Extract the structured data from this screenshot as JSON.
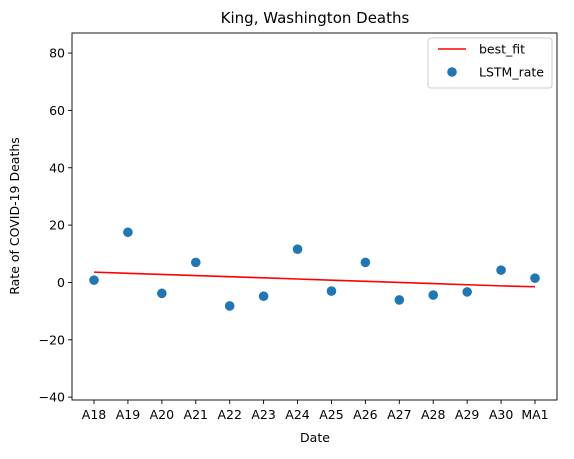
{
  "chart_data": {
    "type": "scatter",
    "title": "King, Washington Deaths",
    "xlabel": "Date",
    "ylabel": "Rate of COVID-19 Deaths",
    "categories": [
      "A18",
      "A19",
      "A20",
      "A21",
      "A22",
      "A23",
      "A24",
      "A25",
      "A26",
      "A27",
      "A28",
      "A29",
      "A30",
      "MA1"
    ],
    "ylim": [
      -41,
      87
    ],
    "yticks": [
      -40,
      -20,
      0,
      20,
      40,
      60,
      80
    ],
    "grid": false,
    "legend_position": "top-right",
    "series": [
      {
        "name": "best_fit",
        "kind": "line",
        "color": "#ff0000",
        "values": [
          3.6,
          3.2,
          2.8,
          2.4,
          2.0,
          1.6,
          1.2,
          0.8,
          0.4,
          0.0,
          -0.4,
          -0.8,
          -1.2,
          -1.5
        ]
      },
      {
        "name": "LSTM_rate",
        "kind": "scatter",
        "color": "#1f77b4",
        "values": [
          0.8,
          17.5,
          -3.8,
          7.0,
          -8.2,
          -4.8,
          11.6,
          -3.0,
          7.0,
          -6.1,
          -4.4,
          -3.3,
          4.3,
          1.5
        ]
      }
    ]
  }
}
